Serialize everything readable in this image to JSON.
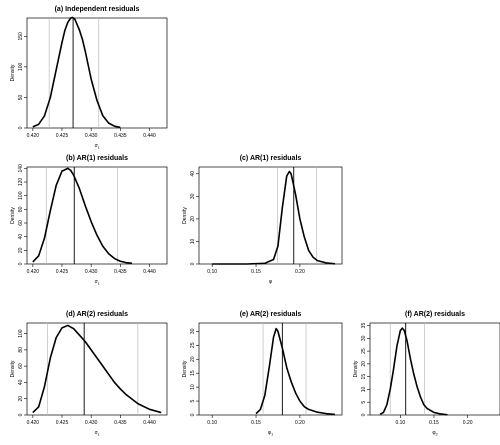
{
  "chart_data": [
    {
      "type": "line",
      "title": "(a) Independent residuals",
      "xlabel": "σε",
      "xlabel_main": "σ",
      "xlabel_sub": "ε",
      "ylabel": "Density",
      "xlim": [
        0.419,
        0.443
      ],
      "ylim": [
        0,
        180
      ],
      "x_ticks": [
        0.42,
        0.425,
        0.43,
        0.435,
        0.44
      ],
      "x_tick_labels": [
        "0.420",
        "0.425",
        "0.430",
        "0.435",
        "0.440"
      ],
      "y_ticks": [
        0,
        50,
        100,
        150
      ],
      "y_tick_labels": [
        "0",
        "50",
        "100",
        "150"
      ],
      "vlines": [
        {
          "x": 0.4228,
          "role": "interval-bound",
          "color": "#bbbbbb"
        },
        {
          "x": 0.4269,
          "role": "estimate",
          "color": "#000000"
        },
        {
          "x": 0.4313,
          "role": "interval-bound",
          "color": "#bbbbbb"
        }
      ],
      "series": [
        {
          "color": "#000000",
          "x": [
            0.42,
            0.421,
            0.422,
            0.423,
            0.424,
            0.425,
            0.4255,
            0.426,
            0.4265,
            0.4268,
            0.4272,
            0.428,
            0.4285,
            0.429,
            0.43,
            0.431,
            0.432,
            0.433,
            0.434,
            0.435
          ],
          "y": [
            2,
            6,
            20,
            50,
            95,
            140,
            160,
            173,
            180,
            181,
            178,
            160,
            145,
            125,
            80,
            45,
            20,
            8,
            3,
            1
          ]
        }
      ]
    },
    {
      "type": "line",
      "title": "(b) AR(1) residuals",
      "xlabel": "σε",
      "xlabel_main": "σ",
      "xlabel_sub": "ε",
      "ylabel": "Density",
      "xlim": [
        0.419,
        0.443
      ],
      "ylim": [
        0,
        142
      ],
      "x_ticks": [
        0.42,
        0.425,
        0.43,
        0.435,
        0.44
      ],
      "x_tick_labels": [
        "0.420",
        "0.425",
        "0.430",
        "0.435",
        "0.440"
      ],
      "y_ticks": [
        0,
        20,
        40,
        60,
        80,
        100,
        120,
        140
      ],
      "y_tick_labels": [
        "0",
        "20",
        "40",
        "60",
        "80",
        "100",
        "120",
        "140"
      ],
      "vlines": [
        {
          "x": 0.4223,
          "role": "interval-bound",
          "color": "#bbbbbb"
        },
        {
          "x": 0.4271,
          "role": "estimate",
          "color": "#000000"
        },
        {
          "x": 0.4345,
          "role": "interval-bound",
          "color": "#bbbbbb"
        }
      ],
      "series": [
        {
          "color": "#000000",
          "x": [
            0.42,
            0.421,
            0.422,
            0.423,
            0.424,
            0.425,
            0.426,
            0.4265,
            0.427,
            0.428,
            0.429,
            0.43,
            0.431,
            0.432,
            0.433,
            0.434,
            0.435,
            0.436,
            0.437
          ],
          "y": [
            3,
            12,
            38,
            78,
            115,
            136,
            140,
            137,
            130,
            110,
            85,
            62,
            42,
            26,
            15,
            8,
            4,
            2,
            1
          ]
        }
      ]
    },
    {
      "type": "line",
      "title": "(c) AR(1) residuals",
      "xlabel": "φ",
      "xlabel_main": "φ",
      "xlabel_sub": "",
      "ylabel": "Density",
      "xlim": [
        0.085,
        0.248
      ],
      "ylim": [
        0,
        43
      ],
      "x_ticks": [
        0.1,
        0.15,
        0.2
      ],
      "x_tick_labels": [
        "0.10",
        "0.15",
        "0.20"
      ],
      "y_ticks": [
        0,
        10,
        20,
        30,
        40
      ],
      "y_tick_labels": [
        "0",
        "10",
        "20",
        "30",
        "40"
      ],
      "vlines": [
        {
          "x": 0.1745,
          "role": "interval-bound",
          "color": "#bbbbbb"
        },
        {
          "x": 0.193,
          "role": "estimate",
          "color": "#000000"
        },
        {
          "x": 0.219,
          "role": "interval-bound",
          "color": "#bbbbbb"
        }
      ],
      "series": [
        {
          "color": "#000000",
          "x": [
            0.1,
            0.14,
            0.16,
            0.17,
            0.175,
            0.18,
            0.185,
            0.188,
            0.19,
            0.195,
            0.2,
            0.205,
            0.21,
            0.215,
            0.22,
            0.23,
            0.24
          ],
          "y": [
            0,
            0,
            0.3,
            2,
            8,
            25,
            39,
            41,
            40,
            31,
            20,
            12,
            6,
            3,
            1.5,
            0.5,
            0.1
          ]
        }
      ]
    },
    {
      "type": "line",
      "title": "(d) AR(2) residuals",
      "xlabel": "σε",
      "xlabel_main": "σ",
      "xlabel_sub": "ε",
      "ylabel": "Density",
      "xlim": [
        0.419,
        0.443
      ],
      "ylim": [
        0,
        113
      ],
      "x_ticks": [
        0.42,
        0.425,
        0.43,
        0.435,
        0.44
      ],
      "x_tick_labels": [
        "0.420",
        "0.425",
        "0.430",
        "0.435",
        "0.440"
      ],
      "y_ticks": [
        0,
        20,
        40,
        60,
        80,
        100
      ],
      "y_tick_labels": [
        "0",
        "20",
        "40",
        "60",
        "80",
        "100"
      ],
      "vlines": [
        {
          "x": 0.4225,
          "role": "interval-bound",
          "color": "#bbbbbb"
        },
        {
          "x": 0.4288,
          "role": "estimate",
          "color": "#000000"
        },
        {
          "x": 0.438,
          "role": "interval-bound",
          "color": "#bbbbbb"
        }
      ],
      "series": [
        {
          "color": "#000000",
          "x": [
            0.42,
            0.421,
            0.422,
            0.423,
            0.424,
            0.425,
            0.426,
            0.427,
            0.428,
            0.429,
            0.43,
            0.431,
            0.432,
            0.433,
            0.434,
            0.435,
            0.436,
            0.438,
            0.44,
            0.442
          ],
          "y": [
            3,
            10,
            35,
            70,
            95,
            107,
            110,
            106,
            98,
            90,
            80,
            70,
            60,
            50,
            40,
            32,
            25,
            14,
            7,
            3
          ]
        }
      ]
    },
    {
      "type": "line",
      "title": "(e) AR(2) residuals",
      "xlabel": "φ1",
      "xlabel_main": "φ",
      "xlabel_sub": "1",
      "ylabel": "Density",
      "xlim": [
        0.085,
        0.248
      ],
      "ylim": [
        0,
        33
      ],
      "x_ticks": [
        0.1,
        0.15,
        0.2
      ],
      "x_tick_labels": [
        "0.10",
        "0.15",
        "0.20"
      ],
      "y_ticks": [
        0,
        5,
        10,
        15,
        20,
        25,
        30
      ],
      "y_tick_labels": [
        "0",
        "5",
        "10",
        "15",
        "20",
        "25",
        "30"
      ],
      "vlines": [
        {
          "x": 0.158,
          "role": "interval-bound",
          "color": "#bbbbbb"
        },
        {
          "x": 0.18,
          "role": "estimate",
          "color": "#000000"
        },
        {
          "x": 0.207,
          "role": "interval-bound",
          "color": "#bbbbbb"
        }
      ],
      "series": [
        {
          "color": "#000000",
          "x": [
            0.15,
            0.155,
            0.16,
            0.165,
            0.17,
            0.173,
            0.175,
            0.18,
            0.185,
            0.19,
            0.195,
            0.2,
            0.205,
            0.21,
            0.22,
            0.23,
            0.24
          ],
          "y": [
            0.5,
            2,
            7,
            17,
            28,
            31,
            30,
            24,
            17,
            12,
            8,
            5,
            3,
            2,
            1,
            0.5,
            0.2
          ]
        }
      ]
    },
    {
      "type": "line",
      "title": "(f) AR(2) residuals",
      "xlabel": "φ2",
      "xlabel_main": "φ",
      "xlabel_sub": "2",
      "ylabel": "Density",
      "xlim": [
        0.055,
        0.248
      ],
      "ylim": [
        0,
        36
      ],
      "x_ticks": [
        0.1,
        0.15,
        0.2
      ],
      "x_tick_labels": [
        "0.10",
        "0.15",
        "0.20"
      ],
      "y_ticks": [
        0,
        5,
        10,
        15,
        20,
        25,
        30,
        35
      ],
      "y_tick_labels": [
        "0",
        "5",
        "10",
        "15",
        "20",
        "25",
        "30",
        "35"
      ],
      "vlines": [
        {
          "x": 0.085,
          "role": "interval-bound",
          "color": "#bbbbbb"
        },
        {
          "x": 0.108,
          "role": "estimate",
          "color": "#000000"
        },
        {
          "x": 0.136,
          "role": "interval-bound",
          "color": "#bbbbbb"
        }
      ],
      "series": [
        {
          "color": "#000000",
          "x": [
            0.07,
            0.075,
            0.08,
            0.085,
            0.09,
            0.095,
            0.1,
            0.103,
            0.106,
            0.11,
            0.115,
            0.12,
            0.125,
            0.13,
            0.135,
            0.14,
            0.15,
            0.16,
            0.17
          ],
          "y": [
            0.3,
            1,
            4,
            10,
            18,
            27,
            33,
            34,
            33,
            29,
            22,
            16,
            11,
            7,
            4,
            2.5,
            1,
            0.4,
            0.1
          ]
        }
      ]
    }
  ]
}
